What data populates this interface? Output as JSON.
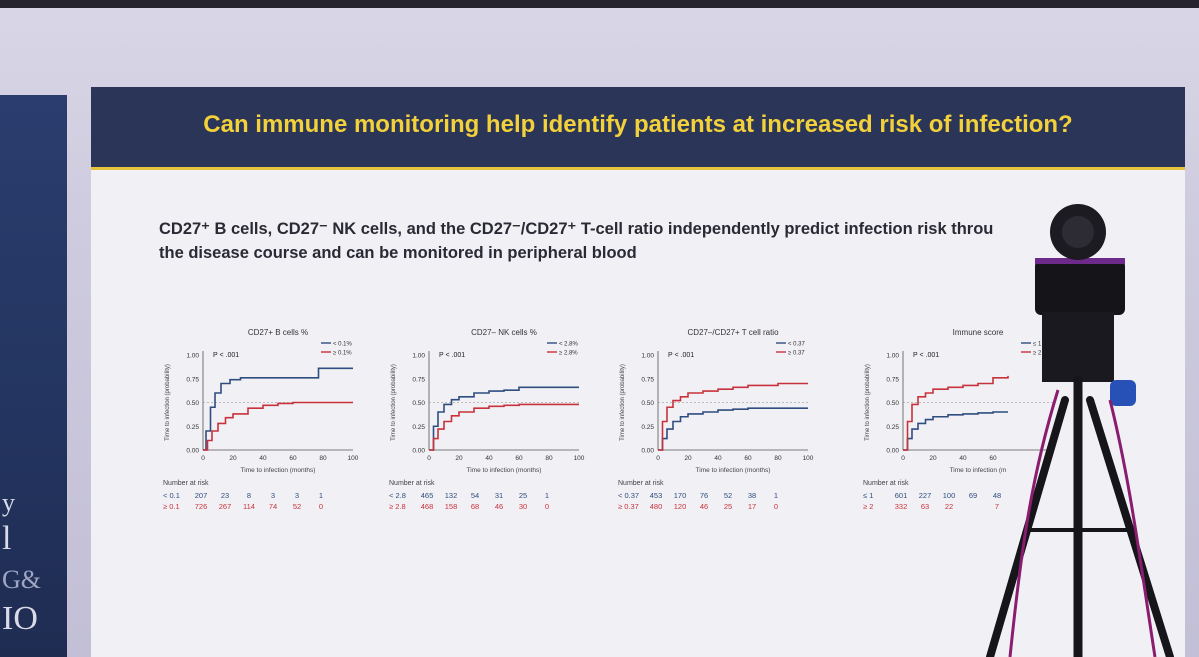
{
  "slide": {
    "title": "Can immune monitoring help identify patients at increased risk of infection?",
    "subtitle_line1": "CD27⁺ B cells, CD27⁻ NK cells, and the CD27⁻/CD27⁺ T-cell ratio independently predict infection risk throu",
    "subtitle_line2": "the disease course and can be monitored in peripheral blood"
  },
  "left_panel": {
    "fragments": [
      "y",
      "l",
      "G&",
      "IO"
    ]
  },
  "colors": {
    "series_low": "#2f4d7f",
    "series_high": "#c8323c",
    "title_band": "#2b3558",
    "title_text": "#f2d13a"
  },
  "chart_data": [
    {
      "type": "line",
      "title": "CD27+ B cells %",
      "xlabel": "Time to infection (months)",
      "ylabel": "Time to infection (probability)",
      "pvalue": "P < .001",
      "xlim": [
        0,
        100
      ],
      "ylim": [
        0,
        1
      ],
      "x_ticks": [
        "0",
        "20",
        "40",
        "60",
        "80",
        "100"
      ],
      "y_ticks": [
        "0.00",
        "0.25",
        "0.50",
        "0.75",
        "1.00"
      ],
      "series": [
        {
          "name": "< 0.1%",
          "x": [
            0,
            2,
            5,
            8,
            12,
            18,
            25,
            35,
            50,
            70,
            77,
            100
          ],
          "y": [
            0,
            0.2,
            0.45,
            0.6,
            0.7,
            0.74,
            0.76,
            0.76,
            0.76,
            0.76,
            0.86,
            0.86
          ]
        },
        {
          "name": "≥ 0.1%",
          "x": [
            0,
            3,
            6,
            10,
            15,
            20,
            30,
            40,
            50,
            60,
            80,
            90
          ],
          "y": [
            0,
            0.1,
            0.2,
            0.28,
            0.34,
            0.38,
            0.44,
            0.47,
            0.49,
            0.5,
            0.5,
            0.5
          ]
        }
      ],
      "risk_table": {
        "label": "Number at risk",
        "rows": [
          {
            "group": "< 0.1",
            "values": [
              "207",
              "23",
              "8",
              "3",
              "3",
              "1"
            ]
          },
          {
            "group": "≥ 0.1",
            "values": [
              "726",
              "267",
              "114",
              "74",
              "52",
              "0"
            ]
          }
        ]
      }
    },
    {
      "type": "line",
      "title": "CD27– NK cells %",
      "xlabel": "Time to infection (months)",
      "ylabel": "Time to infection (probability)",
      "pvalue": "P < .001",
      "xlim": [
        0,
        100
      ],
      "ylim": [
        0,
        1
      ],
      "x_ticks": [
        "0",
        "20",
        "40",
        "60",
        "80",
        "100"
      ],
      "y_ticks": [
        "0.00",
        "0.25",
        "0.50",
        "0.75",
        "1.00"
      ],
      "series": [
        {
          "name": "< 2.8%",
          "x": [
            0,
            3,
            6,
            10,
            15,
            20,
            30,
            40,
            50,
            60,
            80,
            90
          ],
          "y": [
            0,
            0.25,
            0.4,
            0.48,
            0.53,
            0.56,
            0.6,
            0.62,
            0.63,
            0.66,
            0.66,
            0.66
          ]
        },
        {
          "name": "≥ 2.8%",
          "x": [
            0,
            3,
            6,
            10,
            15,
            20,
            30,
            40,
            50,
            60,
            80,
            90
          ],
          "y": [
            0,
            0.12,
            0.22,
            0.3,
            0.36,
            0.4,
            0.44,
            0.46,
            0.47,
            0.48,
            0.48,
            0.48
          ]
        }
      ],
      "risk_table": {
        "label": "Number at risk",
        "rows": [
          {
            "group": "< 2.8",
            "values": [
              "465",
              "132",
              "54",
              "31",
              "25",
              "1"
            ]
          },
          {
            "group": "≥ 2.8",
            "values": [
              "468",
              "158",
              "68",
              "46",
              "30",
              "0"
            ]
          }
        ]
      }
    },
    {
      "type": "line",
      "title": "CD27–/CD27+ T cell ratio",
      "xlabel": "Time to infection (months)",
      "ylabel": "Time to infection (probability)",
      "pvalue": "P < .001",
      "xlim": [
        0,
        100
      ],
      "ylim": [
        0,
        1
      ],
      "x_ticks": [
        "0",
        "20",
        "40",
        "60",
        "80",
        "100"
      ],
      "y_ticks": [
        "0.00",
        "0.25",
        "0.50",
        "0.75",
        "1.00"
      ],
      "series": [
        {
          "name": "< 0.37",
          "x": [
            0,
            3,
            6,
            10,
            15,
            20,
            30,
            40,
            50,
            60,
            80,
            90
          ],
          "y": [
            0,
            0.12,
            0.22,
            0.3,
            0.35,
            0.38,
            0.4,
            0.42,
            0.43,
            0.44,
            0.44,
            0.44
          ]
        },
        {
          "name": "≥ 0.37",
          "x": [
            0,
            3,
            6,
            10,
            15,
            20,
            30,
            40,
            50,
            60,
            80,
            90
          ],
          "y": [
            0,
            0.3,
            0.45,
            0.52,
            0.56,
            0.6,
            0.62,
            0.64,
            0.66,
            0.68,
            0.7,
            0.7
          ]
        }
      ],
      "risk_table": {
        "label": "Number at risk",
        "rows": [
          {
            "group": "< 0.37",
            "values": [
              "453",
              "170",
              "76",
              "52",
              "38",
              "1"
            ]
          },
          {
            "group": "≥ 0.37",
            "values": [
              "480",
              "120",
              "46",
              "25",
              "17",
              "0"
            ]
          }
        ]
      }
    },
    {
      "type": "line",
      "title": "Immune score",
      "xlabel": "Time to infection (m",
      "ylabel": "Time to infection (probability)",
      "pvalue": "P < .001",
      "xlim": [
        0,
        100
      ],
      "ylim": [
        0,
        1
      ],
      "x_ticks": [
        "0",
        "20",
        "40",
        "60"
      ],
      "y_ticks": [
        "0.00",
        "0.25",
        "0.50",
        "0.75",
        "1.00"
      ],
      "series": [
        {
          "name": "≤ 1 risk",
          "x": [
            0,
            3,
            6,
            10,
            15,
            20,
            30,
            40,
            50,
            60,
            70
          ],
          "y": [
            0,
            0.12,
            0.22,
            0.28,
            0.32,
            0.35,
            0.37,
            0.38,
            0.39,
            0.4,
            0.4
          ]
        },
        {
          "name": "≥ 2 ri",
          "x": [
            0,
            3,
            6,
            10,
            15,
            20,
            30,
            40,
            50,
            60,
            70
          ],
          "y": [
            0,
            0.3,
            0.48,
            0.56,
            0.6,
            0.64,
            0.66,
            0.68,
            0.7,
            0.76,
            0.78
          ]
        }
      ],
      "risk_table": {
        "label": "Number at risk",
        "rows": [
          {
            "group": "≤ 1",
            "values": [
              "601",
              "227",
              "100",
              "69",
              "48"
            ]
          },
          {
            "group": "≥ 2",
            "values": [
              "332",
              "63",
              "22",
              "",
              "7"
            ]
          }
        ]
      }
    }
  ]
}
